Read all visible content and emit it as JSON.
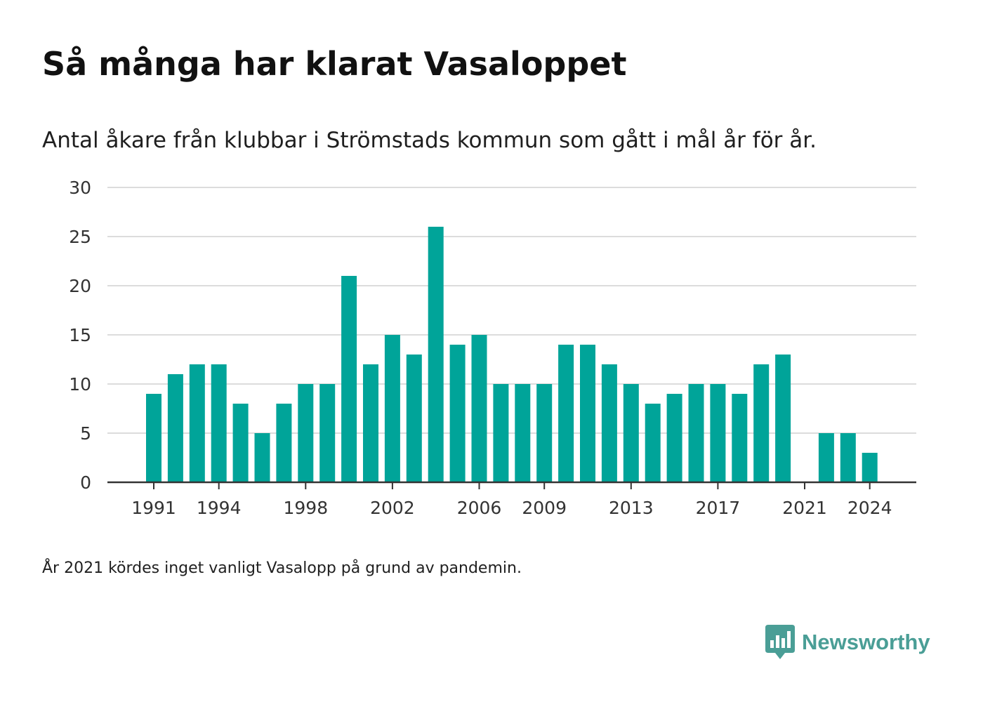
{
  "header": {
    "title": "Så många har klarat Vasaloppet",
    "subtitle": "Antal åkare från klubbar i Strömstads kommun som gått i mål år för år."
  },
  "footnote": "År 2021 kördes inget vanligt Vasalopp på grund av pandemin.",
  "brand": {
    "name": "Newsworthy",
    "icon": "newsworthy-logo-icon",
    "color": "#4a9e96"
  },
  "chart_data": {
    "type": "bar",
    "title": "Så många har klarat Vasaloppet",
    "subtitle": "Antal åkare från klubbar i Strömstads kommun som gått i mål år för år.",
    "xlabel": "",
    "ylabel": "",
    "ylim": [
      0,
      30
    ],
    "grid": true,
    "bar_color": "#00a499",
    "y_ticks": [
      0,
      5,
      10,
      15,
      20,
      25,
      30
    ],
    "x_tick_labels": [
      "1991",
      "1994",
      "1998",
      "2002",
      "2006",
      "2009",
      "2013",
      "2017",
      "2021",
      "2024"
    ],
    "categories": [
      "1991",
      "1992",
      "1993",
      "1994",
      "1995",
      "1996",
      "1997",
      "1998",
      "1999",
      "2000",
      "2001",
      "2002",
      "2003",
      "2004",
      "2005",
      "2006",
      "2007",
      "2008",
      "2009",
      "2010",
      "2011",
      "2012",
      "2013",
      "2014",
      "2015",
      "2016",
      "2017",
      "2018",
      "2019",
      "2020",
      "2021",
      "2022",
      "2023",
      "2024"
    ],
    "values": [
      9,
      11,
      12,
      12,
      8,
      5,
      8,
      10,
      10,
      21,
      12,
      15,
      13,
      26,
      14,
      15,
      10,
      10,
      10,
      14,
      14,
      12,
      10,
      8,
      9,
      10,
      10,
      9,
      12,
      13,
      0,
      5,
      5,
      3
    ]
  }
}
